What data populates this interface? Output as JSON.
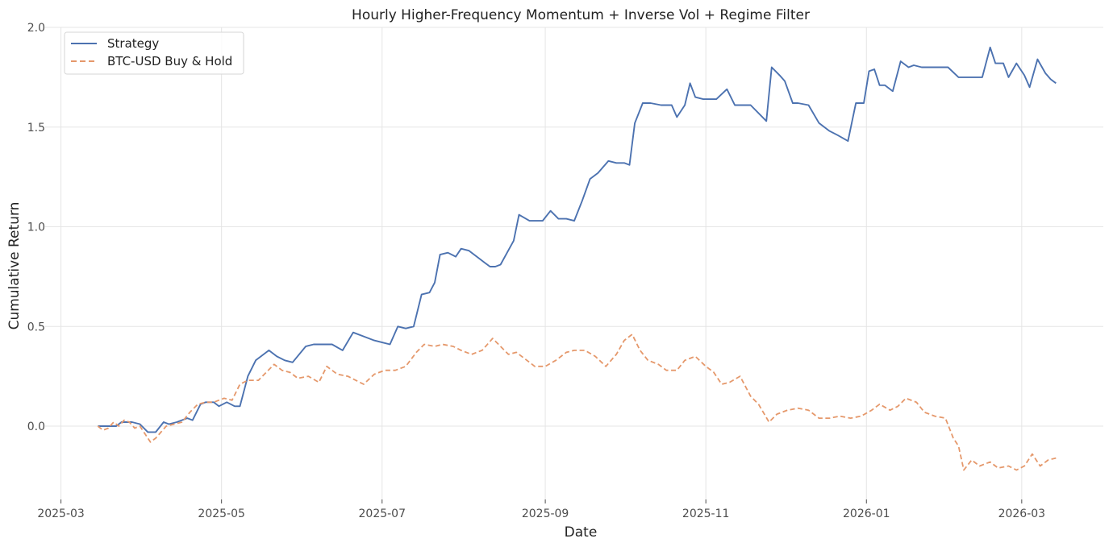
{
  "chart_data": {
    "type": "line",
    "title": "Hourly Higher-Frequency Momentum + Inverse Vol + Regime Filter",
    "xlabel": "Date",
    "ylabel": "Cumulative Return",
    "xlim": [
      "2025-02-23",
      "2026-04-01"
    ],
    "ylim": [
      -0.36,
      2.0
    ],
    "grid": true,
    "legend_position": "top-left",
    "x_tick_labels": [
      "2025-03",
      "2025-05",
      "2025-07",
      "2025-09",
      "2025-11",
      "2026-01",
      "2026-03"
    ],
    "x_tick_dates": [
      "2025-03-01",
      "2025-05-01",
      "2025-07-01",
      "2025-09-01",
      "2025-11-01",
      "2026-01-01",
      "2026-03-01"
    ],
    "y_ticks": [
      0.0,
      0.5,
      1.0,
      1.5,
      2.0
    ],
    "y_tick_labels": [
      "0.0",
      "0.5",
      "1.0",
      "1.5",
      "2.0"
    ],
    "series": [
      {
        "name": "Strategy",
        "color": "#4c72b0",
        "style": "solid",
        "x": [
          "2025-03-15",
          "2025-03-20",
          "2025-03-22",
          "2025-03-24",
          "2025-03-26",
          "2025-03-28",
          "2025-03-31",
          "2025-04-03",
          "2025-04-06",
          "2025-04-09",
          "2025-04-11",
          "2025-04-14",
          "2025-04-18",
          "2025-04-20",
          "2025-04-23",
          "2025-04-25",
          "2025-04-28",
          "2025-04-30",
          "2025-05-03",
          "2025-05-06",
          "2025-05-08",
          "2025-05-11",
          "2025-05-14",
          "2025-05-19",
          "2025-05-22",
          "2025-05-25",
          "2025-05-28",
          "2025-06-02",
          "2025-06-05",
          "2025-06-08",
          "2025-06-12",
          "2025-06-16",
          "2025-06-20",
          "2025-06-24",
          "2025-06-28",
          "2025-07-01",
          "2025-07-04",
          "2025-07-07",
          "2025-07-10",
          "2025-07-13",
          "2025-07-16",
          "2025-07-19",
          "2025-07-21",
          "2025-07-23",
          "2025-07-26",
          "2025-07-29",
          "2025-07-31",
          "2025-08-03",
          "2025-08-06",
          "2025-08-09",
          "2025-08-11",
          "2025-08-13",
          "2025-08-15",
          "2025-08-20",
          "2025-08-22",
          "2025-08-26",
          "2025-08-31",
          "2025-09-03",
          "2025-09-06",
          "2025-09-09",
          "2025-09-12",
          "2025-09-15",
          "2025-09-18",
          "2025-09-21",
          "2025-09-25",
          "2025-09-28",
          "2025-10-01",
          "2025-10-03",
          "2025-10-05",
          "2025-10-08",
          "2025-10-11",
          "2025-10-15",
          "2025-10-19",
          "2025-10-21",
          "2025-10-24",
          "2025-10-26",
          "2025-10-28",
          "2025-10-31",
          "2025-11-05",
          "2025-11-09",
          "2025-11-12",
          "2025-11-15",
          "2025-11-18",
          "2025-11-24",
          "2025-11-26",
          "2025-11-29",
          "2025-12-01",
          "2025-12-04",
          "2025-12-06",
          "2025-12-10",
          "2025-12-14",
          "2025-12-18",
          "2025-12-21",
          "2025-12-25",
          "2025-12-28",
          "2025-12-31",
          "2026-01-02",
          "2026-01-04",
          "2026-01-06",
          "2026-01-08",
          "2026-01-11",
          "2026-01-14",
          "2026-01-17",
          "2026-01-19",
          "2026-01-22",
          "2026-01-26",
          "2026-01-29",
          "2026-02-01",
          "2026-02-05",
          "2026-02-09",
          "2026-02-12",
          "2026-02-14",
          "2026-02-17",
          "2026-02-19",
          "2026-02-22",
          "2026-02-24",
          "2026-02-27",
          "2026-03-02",
          "2026-03-04",
          "2026-03-07",
          "2026-03-10",
          "2026-03-12",
          "2026-03-14"
        ],
        "values": [
          0.0,
          0.0,
          0.0,
          0.02,
          0.02,
          0.02,
          0.01,
          -0.03,
          -0.03,
          0.02,
          0.01,
          0.02,
          0.04,
          0.03,
          0.11,
          0.12,
          0.12,
          0.1,
          0.12,
          0.1,
          0.1,
          0.25,
          0.33,
          0.38,
          0.35,
          0.33,
          0.32,
          0.4,
          0.41,
          0.41,
          0.41,
          0.38,
          0.47,
          0.45,
          0.43,
          0.42,
          0.41,
          0.5,
          0.49,
          0.5,
          0.66,
          0.67,
          0.72,
          0.86,
          0.87,
          0.85,
          0.89,
          0.88,
          0.85,
          0.82,
          0.8,
          0.8,
          0.81,
          0.93,
          1.06,
          1.03,
          1.03,
          1.08,
          1.04,
          1.04,
          1.03,
          1.13,
          1.24,
          1.27,
          1.33,
          1.32,
          1.32,
          1.31,
          1.52,
          1.62,
          1.62,
          1.61,
          1.61,
          1.55,
          1.61,
          1.72,
          1.65,
          1.64,
          1.64,
          1.69,
          1.61,
          1.61,
          1.61,
          1.53,
          1.8,
          1.76,
          1.73,
          1.62,
          1.62,
          1.61,
          1.52,
          1.48,
          1.46,
          1.43,
          1.62,
          1.62,
          1.78,
          1.79,
          1.71,
          1.71,
          1.68,
          1.83,
          1.8,
          1.81,
          1.8,
          1.8,
          1.8,
          1.8,
          1.75,
          1.75,
          1.75,
          1.75,
          1.9,
          1.82,
          1.82,
          1.75,
          1.82,
          1.76,
          1.7,
          1.84,
          1.77,
          1.74,
          1.72
        ],
        "note": ""
      },
      {
        "name": "BTC-USD Buy & Hold",
        "color": "#e5986b",
        "style": "dashed",
        "x": [
          "2025-03-15",
          "2025-03-17",
          "2025-03-19",
          "2025-03-21",
          "2025-03-23",
          "2025-03-25",
          "2025-03-27",
          "2025-03-29",
          "2025-03-31",
          "2025-04-02",
          "2025-04-04",
          "2025-04-06",
          "2025-04-08",
          "2025-04-10",
          "2025-04-13",
          "2025-04-16",
          "2025-04-19",
          "2025-04-22",
          "2025-04-25",
          "2025-04-28",
          "2025-05-02",
          "2025-05-05",
          "2025-05-08",
          "2025-05-11",
          "2025-05-15",
          "2025-05-18",
          "2025-05-21",
          "2025-05-24",
          "2025-05-27",
          "2025-05-30",
          "2025-06-03",
          "2025-06-07",
          "2025-06-10",
          "2025-06-14",
          "2025-06-18",
          "2025-06-21",
          "2025-06-24",
          "2025-06-28",
          "2025-07-02",
          "2025-07-06",
          "2025-07-10",
          "2025-07-14",
          "2025-07-17",
          "2025-07-21",
          "2025-07-24",
          "2025-07-28",
          "2025-07-31",
          "2025-08-04",
          "2025-08-08",
          "2025-08-12",
          "2025-08-15",
          "2025-08-18",
          "2025-08-21",
          "2025-08-25",
          "2025-08-28",
          "2025-09-01",
          "2025-09-05",
          "2025-09-09",
          "2025-09-12",
          "2025-09-16",
          "2025-09-20",
          "2025-09-24",
          "2025-09-28",
          "2025-10-01",
          "2025-10-04",
          "2025-10-07",
          "2025-10-10",
          "2025-10-14",
          "2025-10-17",
          "2025-10-21",
          "2025-10-24",
          "2025-10-28",
          "2025-11-01",
          "2025-11-04",
          "2025-11-07",
          "2025-11-10",
          "2025-11-14",
          "2025-11-18",
          "2025-11-21",
          "2025-11-25",
          "2025-11-28",
          "2025-12-02",
          "2025-12-06",
          "2025-12-10",
          "2025-12-14",
          "2025-12-18",
          "2025-12-22",
          "2025-12-26",
          "2025-12-30",
          "2026-01-03",
          "2026-01-06",
          "2026-01-10",
          "2026-01-13",
          "2026-01-16",
          "2026-01-20",
          "2026-01-23",
          "2026-01-27",
          "2026-01-31",
          "2026-02-03",
          "2026-02-05",
          "2026-02-07",
          "2026-02-10",
          "2026-02-13",
          "2026-02-17",
          "2026-02-20",
          "2026-02-24",
          "2026-02-27",
          "2026-03-02",
          "2026-03-05",
          "2026-03-08",
          "2026-03-11",
          "2026-03-14"
        ],
        "values": [
          0.0,
          -0.02,
          -0.01,
          0.02,
          0.0,
          0.03,
          0.02,
          -0.01,
          0.0,
          -0.04,
          -0.08,
          -0.06,
          -0.03,
          0.0,
          0.01,
          0.02,
          0.07,
          0.11,
          0.12,
          0.12,
          0.14,
          0.13,
          0.21,
          0.23,
          0.23,
          0.27,
          0.31,
          0.28,
          0.27,
          0.24,
          0.25,
          0.22,
          0.3,
          0.26,
          0.25,
          0.23,
          0.21,
          0.26,
          0.28,
          0.28,
          0.3,
          0.37,
          0.41,
          0.4,
          0.41,
          0.4,
          0.38,
          0.36,
          0.38,
          0.44,
          0.4,
          0.36,
          0.37,
          0.33,
          0.3,
          0.3,
          0.33,
          0.37,
          0.38,
          0.38,
          0.35,
          0.3,
          0.36,
          0.43,
          0.46,
          0.38,
          0.33,
          0.31,
          0.28,
          0.28,
          0.33,
          0.35,
          0.3,
          0.27,
          0.21,
          0.22,
          0.25,
          0.15,
          0.11,
          0.02,
          0.06,
          0.08,
          0.09,
          0.08,
          0.04,
          0.04,
          0.05,
          0.04,
          0.05,
          0.08,
          0.11,
          0.08,
          0.1,
          0.14,
          0.12,
          0.07,
          0.05,
          0.04,
          -0.06,
          -0.1,
          -0.22,
          -0.17,
          -0.2,
          -0.18,
          -0.21,
          -0.2,
          -0.22,
          -0.2,
          -0.14,
          -0.2,
          -0.17,
          -0.16
        ],
        "note": ""
      }
    ]
  }
}
